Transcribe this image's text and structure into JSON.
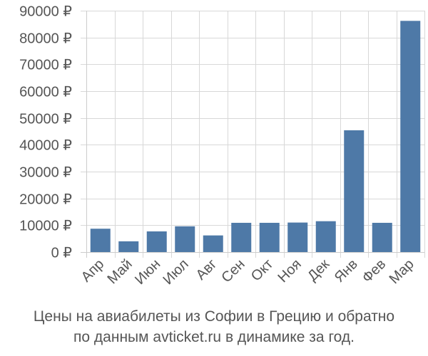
{
  "chart_data": {
    "type": "bar",
    "categories": [
      "Апр",
      "Май",
      "Июн",
      "Июл",
      "Авг",
      "Сен",
      "Окт",
      "Ноя",
      "Дек",
      "Янв",
      "Фев",
      "Мар"
    ],
    "values": [
      8700,
      4000,
      7700,
      9600,
      6200,
      10900,
      10900,
      11000,
      11500,
      45400,
      10900,
      86200
    ],
    "ylim": [
      0,
      90000
    ],
    "yticks": [
      0,
      10000,
      20000,
      30000,
      40000,
      50000,
      60000,
      70000,
      80000,
      90000
    ],
    "ytick_labels": [
      "0 ₽",
      "10000 ₽",
      "20000 ₽",
      "30000 ₽",
      "40000 ₽",
      "50000 ₽",
      "60000 ₽",
      "70000 ₽",
      "80000 ₽",
      "90000 ₽"
    ],
    "bar_color": "#4e79a7",
    "grid": true,
    "grid_axis": "both"
  },
  "caption": {
    "line1": "Цены на авиабилеты из Софии в Грецию и обратно",
    "line2": "по данным avticket.ru в динамике за год."
  }
}
